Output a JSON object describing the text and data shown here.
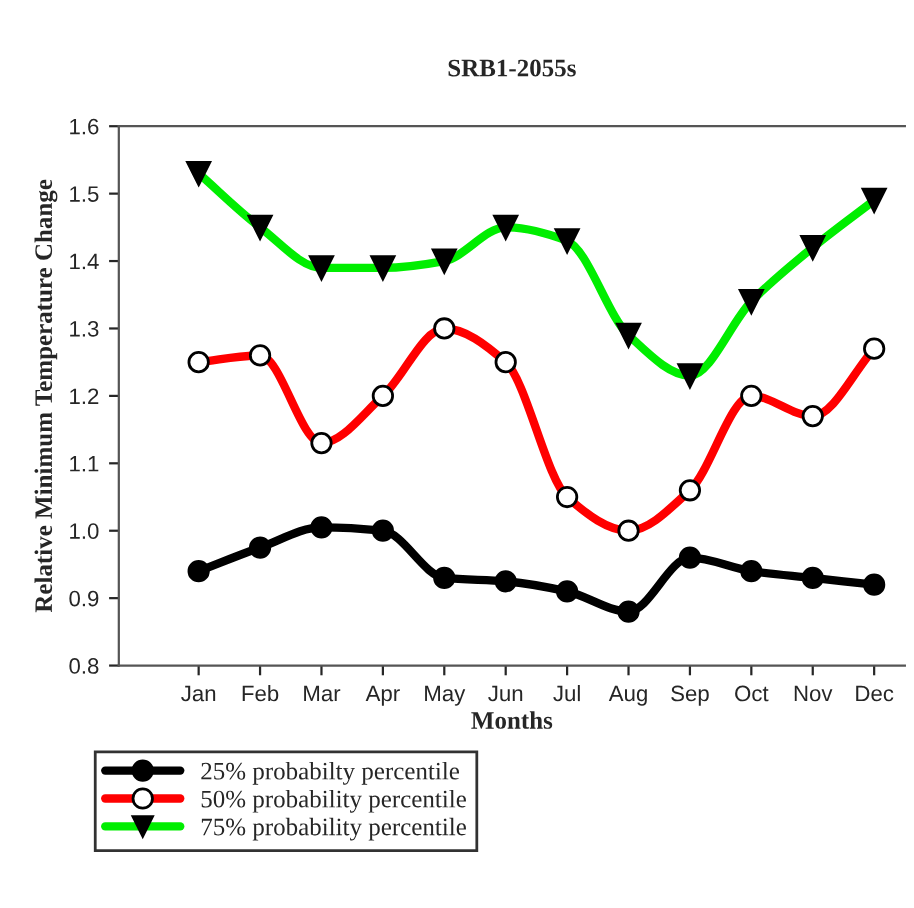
{
  "chart_data": {
    "type": "line",
    "title": "SRB1-2055s",
    "xlabel": "Months",
    "ylabel": "Relative Minimum Temperature Change",
    "categories": [
      "Jan",
      "Feb",
      "Mar",
      "Apr",
      "May",
      "Jun",
      "Jul",
      "Aug",
      "Sep",
      "Oct",
      "Nov",
      "Dec"
    ],
    "series": [
      {
        "name": "25% probabilty percentile",
        "color": "#000000",
        "marker": "circle",
        "values": [
          0.94,
          0.975,
          1.005,
          1.0,
          0.93,
          0.925,
          0.91,
          0.88,
          0.96,
          0.94,
          0.93,
          0.92
        ]
      },
      {
        "name": "50% probability percentile",
        "color": "#ff0000",
        "marker": "circle",
        "values": [
          1.25,
          1.26,
          1.13,
          1.2,
          1.3,
          1.25,
          1.05,
          1.0,
          1.06,
          1.2,
          1.17,
          1.27
        ]
      },
      {
        "name": "75% probability percentile",
        "color": "#00ee00",
        "marker": "triangle",
        "values": [
          1.53,
          1.45,
          1.39,
          1.39,
          1.4,
          1.45,
          1.43,
          1.29,
          1.23,
          1.34,
          1.42,
          1.49
        ]
      }
    ],
    "ylim": [
      0.8,
      1.6
    ],
    "yticks": [
      {
        "value": 0.8,
        "label": "0.8"
      },
      {
        "value": 0.9,
        "label": "0.9"
      },
      {
        "value": 1.0,
        "label": "1.0"
      },
      {
        "value": 1.1,
        "label": "1.1"
      },
      {
        "value": 1.2,
        "label": "1.2"
      },
      {
        "value": 1.3,
        "label": "1.3"
      },
      {
        "value": 1.4,
        "label": "1.4"
      },
      {
        "value": 1.5,
        "label": "1.5"
      },
      {
        "value": 1.6,
        "label": "1.6"
      }
    ],
    "grid": false,
    "legend": "bottom left",
    "line_style": "solid"
  }
}
